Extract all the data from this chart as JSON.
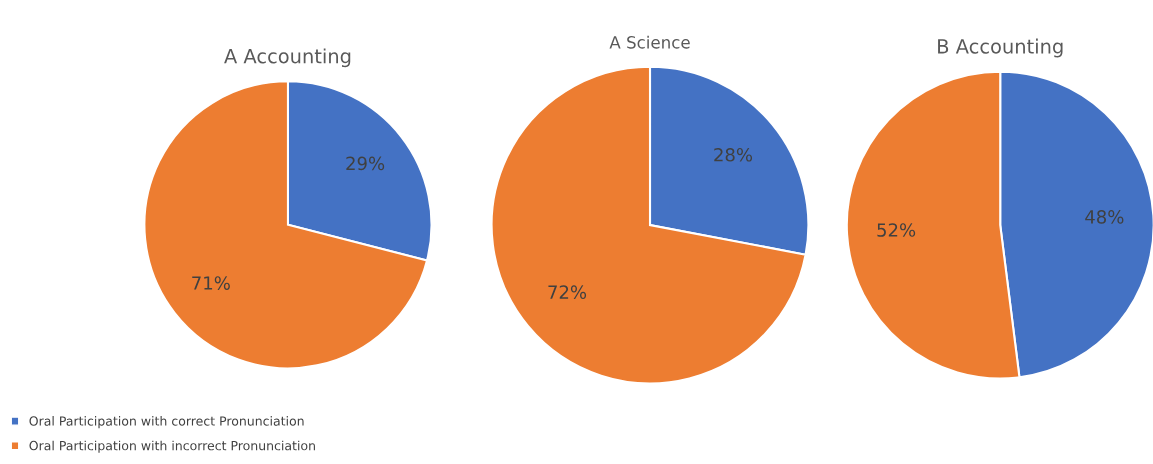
{
  "chart_data": [
    {
      "type": "pie",
      "title": "A Accounting",
      "categories": [
        "Oral Participation with correct Pronunciation",
        "Oral Participation with incorrect Pronunciation"
      ],
      "values": [
        29,
        71
      ],
      "colors": [
        "#4472c4",
        "#ed7d31"
      ],
      "value_labels": [
        "29%",
        "71%"
      ],
      "legend": "bottom left"
    },
    {
      "type": "pie",
      "title": "A Science",
      "categories": [
        null,
        null
      ],
      "values": [
        28,
        72
      ],
      "colors": [
        "#4472c4",
        "#ed7d31"
      ],
      "value_labels": [
        "28%",
        "72%"
      ]
    },
    {
      "type": "pie",
      "title": "B Accounting",
      "categories": [
        null,
        null
      ],
      "values": [
        48,
        52
      ],
      "colors": [
        "#4472c4",
        "#ed7d31"
      ],
      "value_labels": [
        "48%",
        "52%"
      ]
    }
  ]
}
